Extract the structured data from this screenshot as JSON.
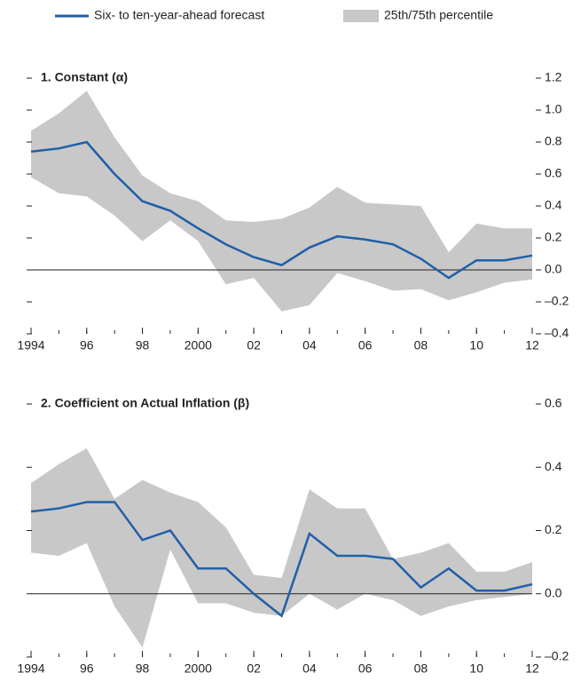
{
  "chart_data": [
    {
      "type": "line-band",
      "title": "1. Constant (α)",
      "x": [
        1994,
        1995,
        1996,
        1997,
        1998,
        1999,
        2000,
        2001,
        2002,
        2003,
        2004,
        2005,
        2006,
        2007,
        2008,
        2009,
        2010,
        2011,
        2012
      ],
      "xlim": [
        1994,
        2012
      ],
      "xticks": [
        {
          "value": 1994,
          "label": "1994"
        },
        {
          "value": 1996,
          "label": "96"
        },
        {
          "value": 1998,
          "label": "98"
        },
        {
          "value": 2000,
          "label": "2000"
        },
        {
          "value": 2002,
          "label": "02"
        },
        {
          "value": 2004,
          "label": "04"
        },
        {
          "value": 2006,
          "label": "06"
        },
        {
          "value": 2008,
          "label": "08"
        },
        {
          "value": 2010,
          "label": "10"
        },
        {
          "value": 2012,
          "label": "12"
        }
      ],
      "ylim": [
        -0.4,
        1.2
      ],
      "yticks": [
        {
          "value": -0.4,
          "label": "–0.4"
        },
        {
          "value": -0.2,
          "label": "–0.2"
        },
        {
          "value": 0,
          "label": "0.0"
        },
        {
          "value": 0.2,
          "label": "0.2"
        },
        {
          "value": 0.4,
          "label": "0.4"
        },
        {
          "value": 0.6,
          "label": "0.6"
        },
        {
          "value": 0.8,
          "label": "0.8"
        },
        {
          "value": 1,
          "label": "1.0"
        },
        {
          "value": 1.2,
          "label": "1.2"
        }
      ],
      "series": [
        {
          "name": "25th/75th percentile",
          "color": "#c8c8c8",
          "upper": [
            0.87,
            0.98,
            1.12,
            0.83,
            0.59,
            0.48,
            0.43,
            0.31,
            0.3,
            0.32,
            0.39,
            0.52,
            0.42,
            0.41,
            0.4,
            0.11,
            0.29,
            0.26,
            0.26
          ],
          "lower": [
            0.58,
            0.48,
            0.46,
            0.34,
            0.18,
            0.31,
            0.18,
            -0.09,
            -0.05,
            -0.26,
            -0.22,
            -0.02,
            -0.07,
            -0.13,
            -0.12,
            -0.19,
            -0.14,
            -0.08,
            -0.06
          ]
        },
        {
          "name": "Six- to ten-year-ahead forecast",
          "color": "#1f5fa8",
          "values": [
            0.74,
            0.76,
            0.8,
            0.6,
            0.43,
            0.37,
            0.26,
            0.16,
            0.08,
            0.03,
            0.14,
            0.21,
            0.19,
            0.16,
            0.07,
            -0.05,
            0.06,
            0.06,
            0.09
          ]
        }
      ]
    },
    {
      "type": "line-band",
      "title": "2. Coefficient on Actual Inflation (β)",
      "x": [
        1994,
        1995,
        1996,
        1997,
        1998,
        1999,
        2000,
        2001,
        2002,
        2003,
        2004,
        2005,
        2006,
        2007,
        2008,
        2009,
        2010,
        2011,
        2012
      ],
      "xlim": [
        1994,
        2012
      ],
      "xticks": [
        {
          "value": 1994,
          "label": "1994"
        },
        {
          "value": 1996,
          "label": "96"
        },
        {
          "value": 1998,
          "label": "98"
        },
        {
          "value": 2000,
          "label": "2000"
        },
        {
          "value": 2002,
          "label": "02"
        },
        {
          "value": 2004,
          "label": "04"
        },
        {
          "value": 2006,
          "label": "06"
        },
        {
          "value": 2008,
          "label": "08"
        },
        {
          "value": 2010,
          "label": "10"
        },
        {
          "value": 2012,
          "label": "12"
        }
      ],
      "ylim": [
        -0.2,
        0.6
      ],
      "yticks": [
        {
          "value": -0.2,
          "label": "–0.2"
        },
        {
          "value": 0,
          "label": "0.0"
        },
        {
          "value": 0.2,
          "label": "0.2"
        },
        {
          "value": 0.4,
          "label": "0.4"
        },
        {
          "value": 0.6,
          "label": "0.6"
        }
      ],
      "series": [
        {
          "color": "#c8c8c8",
          "upper": [
            0.35,
            0.41,
            0.46,
            0.3,
            0.36,
            0.32,
            0.29,
            0.21,
            0.06,
            0.05,
            0.33,
            0.27,
            0.27,
            0.11,
            0.13,
            0.16,
            0.07,
            0.07,
            0.1
          ],
          "lower": [
            0.13,
            0.12,
            0.16,
            -0.04,
            -0.17,
            0.14,
            -0.03,
            -0.03,
            -0.06,
            -0.07,
            0.0,
            -0.05,
            0.0,
            -0.02,
            -0.07,
            -0.04,
            -0.02,
            -0.01,
            0.0
          ]
        },
        {
          "color": "#1f5fa8",
          "values": [
            0.26,
            0.27,
            0.29,
            0.29,
            0.17,
            0.2,
            0.08,
            0.08,
            0.0,
            -0.07,
            0.19,
            0.12,
            0.12,
            0.11,
            0.02,
            0.08,
            0.01,
            0.01,
            0.03
          ]
        }
      ]
    }
  ]
}
